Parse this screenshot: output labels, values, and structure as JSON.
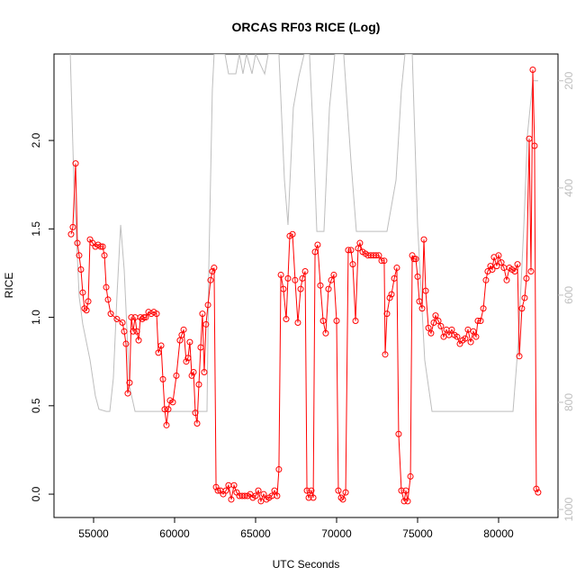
{
  "chart_data": {
    "type": "line",
    "title": "ORCAS RF03 RICE (Log)",
    "xlabel": "UTC Seconds",
    "ylabel": "RICE",
    "xlim": [
      52556,
      83667
    ],
    "xticks": [
      55000,
      60000,
      65000,
      70000,
      75000,
      80000
    ],
    "ylim": [
      -0.132,
      2.489
    ],
    "yticks": [
      {
        "value": 0,
        "label": "0.0"
      },
      0.5,
      {
        "value": 1,
        "label": "1.0"
      },
      1.5,
      {
        "value": 2,
        "label": "2.0"
      }
    ],
    "y2lim": [
      1015,
      150
    ],
    "y2ticks": [
      200,
      400,
      600,
      800,
      1000
    ],
    "series": [
      {
        "color": "#bebebe",
        "axis": "y2",
        "markers": false,
        "x": [
          53560,
          53780,
          54110,
          54330,
          54780,
          55110,
          55330,
          55780,
          56000,
          56220,
          56440,
          56670,
          56890,
          57220,
          57560,
          62000,
          62110,
          62330,
          62440,
          63110,
          63330,
          63780,
          64000,
          64220,
          64440,
          64780,
          65000,
          65560,
          65780,
          66440,
          66780,
          67000,
          67330,
          67670,
          68000,
          68330,
          68560,
          68780,
          69220,
          69560,
          69890,
          70440,
          70890,
          71220,
          73110,
          73670,
          74000,
          74220,
          74670,
          75000,
          75440,
          75890,
          80890,
          81220,
          81560,
          81780,
          82110,
          82440
        ],
        "values": [
          150,
          385,
          603,
          654,
          721,
          788,
          813,
          817,
          817,
          755,
          603,
          469,
          553,
          771,
          817,
          817,
          553,
          217,
          150,
          150,
          187,
          187,
          150,
          187,
          150,
          187,
          150,
          187,
          150,
          150,
          385,
          469,
          250,
          192,
          150,
          150,
          301,
          481,
          481,
          250,
          150,
          150,
          351,
          481,
          481,
          385,
          217,
          150,
          150,
          469,
          721,
          817,
          817,
          687,
          469,
          301,
          200,
          200
        ]
      },
      {
        "color": "#ff0000",
        "axis": "y",
        "markers": true,
        "x": [
          53610,
          53720,
          53890,
          54000,
          54110,
          54220,
          54330,
          54440,
          54560,
          54670,
          54780,
          54940,
          55110,
          55280,
          55440,
          55560,
          55670,
          55780,
          55890,
          56060,
          56440,
          56780,
          56890,
          57000,
          57110,
          57220,
          57330,
          57440,
          57560,
          57670,
          57780,
          57890,
          58000,
          58110,
          58220,
          58390,
          58560,
          58720,
          58890,
          59000,
          59170,
          59280,
          59390,
          59500,
          59610,
          59720,
          59890,
          60110,
          60330,
          60440,
          60560,
          60720,
          60830,
          60940,
          61060,
          61170,
          61280,
          61390,
          61500,
          61610,
          61720,
          61830,
          61940,
          62060,
          62220,
          62330,
          62440,
          62560,
          62670,
          62830,
          63000,
          63170,
          63330,
          63500,
          63670,
          63830,
          64000,
          64170,
          64330,
          64500,
          64670,
          64830,
          65000,
          65170,
          65330,
          65500,
          65670,
          65830,
          66000,
          66170,
          66330,
          66440,
          66560,
          66720,
          66890,
          67000,
          67110,
          67280,
          67440,
          67610,
          67780,
          67890,
          68060,
          68170,
          68280,
          68440,
          68560,
          68670,
          68830,
          69000,
          69170,
          69330,
          69500,
          69670,
          69830,
          70000,
          70110,
          70280,
          70390,
          70560,
          70720,
          70890,
          71000,
          71170,
          71330,
          71440,
          71610,
          71780,
          71940,
          72110,
          72280,
          72440,
          72610,
          72780,
          72940,
          73000,
          73110,
          73280,
          73390,
          73560,
          73720,
          73830,
          74000,
          74170,
          74280,
          74390,
          74560,
          74670,
          74780,
          74890,
          75000,
          75110,
          75280,
          75390,
          75500,
          75670,
          75830,
          76000,
          76110,
          76280,
          76440,
          76610,
          76780,
          76940,
          77110,
          77280,
          77440,
          77610,
          77780,
          77940,
          78110,
          78280,
          78440,
          78610,
          78720,
          78890,
          79060,
          79220,
          79330,
          79500,
          79610,
          79720,
          79890,
          80000,
          80170,
          80330,
          80500,
          80670,
          80830,
          81000,
          81170,
          81280,
          81440,
          81610,
          81720,
          81890,
          82000,
          82110,
          82220,
          82330,
          82440
        ],
        "values": [
          1.47,
          1.51,
          1.87,
          1.42,
          1.35,
          1.27,
          1.14,
          1.05,
          1.04,
          1.09,
          1.44,
          1.42,
          1.4,
          1.41,
          1.4,
          1.4,
          1.35,
          1.17,
          1.1,
          1.02,
          0.99,
          0.97,
          0.92,
          0.85,
          0.57,
          0.63,
          1.0,
          0.92,
          1.0,
          0.92,
          0.87,
          1.0,
          0.99,
          1.0,
          1.0,
          1.03,
          1.02,
          1.03,
          1.02,
          0.8,
          0.84,
          0.65,
          0.48,
          0.39,
          0.48,
          0.53,
          0.52,
          0.67,
          0.87,
          0.9,
          0.93,
          0.75,
          0.77,
          0.86,
          0.67,
          0.69,
          0.46,
          0.4,
          0.62,
          0.83,
          1.02,
          0.69,
          0.96,
          1.07,
          1.21,
          1.26,
          1.28,
          0.04,
          0.02,
          0.02,
          0.0,
          0.02,
          0.05,
          -0.03,
          0.05,
          0.01,
          -0.01,
          -0.01,
          -0.01,
          -0.01,
          0.0,
          -0.02,
          -0.01,
          0.02,
          -0.04,
          0.0,
          -0.03,
          -0.02,
          -0.01,
          0.02,
          -0.01,
          0.14,
          1.24,
          1.16,
          0.99,
          1.22,
          1.46,
          1.47,
          1.21,
          0.97,
          1.16,
          1.22,
          1.26,
          0.02,
          -0.02,
          0.02,
          -0.02,
          1.37,
          1.41,
          1.18,
          0.98,
          0.91,
          1.16,
          1.21,
          1.24,
          0.98,
          0.02,
          -0.02,
          -0.03,
          0.01,
          1.38,
          1.38,
          1.3,
          0.98,
          1.39,
          1.42,
          1.37,
          1.36,
          1.35,
          1.35,
          1.35,
          1.35,
          1.35,
          1.32,
          1.32,
          0.79,
          1.02,
          1.11,
          1.13,
          1.22,
          1.28,
          0.34,
          0.02,
          -0.04,
          0.02,
          -0.04,
          0.1,
          1.35,
          1.33,
          1.33,
          1.23,
          1.09,
          1.05,
          1.44,
          1.15,
          0.94,
          0.91,
          0.97,
          1.01,
          0.98,
          0.95,
          0.89,
          0.93,
          0.9,
          0.93,
          0.9,
          0.89,
          0.85,
          0.87,
          0.88,
          0.93,
          0.86,
          0.92,
          0.89,
          0.98,
          0.98,
          1.05,
          1.21,
          1.26,
          1.29,
          1.27,
          1.34,
          1.29,
          1.35,
          1.31,
          1.28,
          1.21,
          1.28,
          1.27,
          1.26,
          1.3,
          0.78,
          1.05,
          1.11,
          1.22,
          2.01,
          1.26,
          2.4,
          1.97,
          0.03,
          0.01
        ]
      }
    ]
  }
}
